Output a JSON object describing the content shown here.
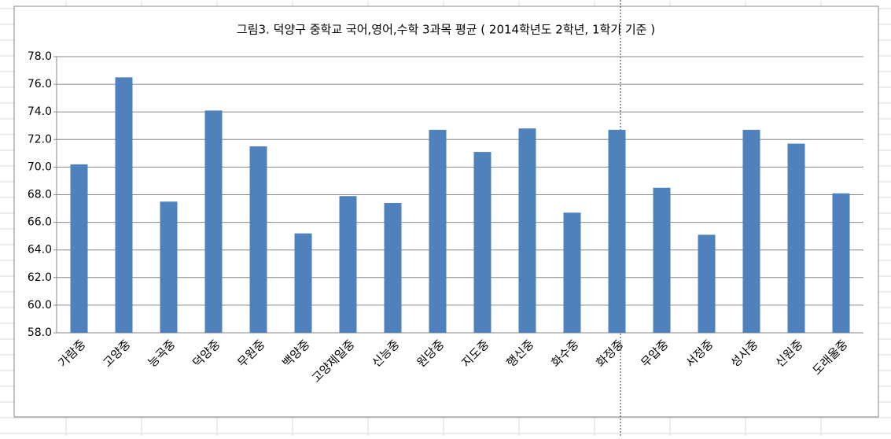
{
  "chart_data": {
    "type": "bar",
    "title": "그림3. 덕양구 중학교 국어,영어,수학 3과목 평균 ( 2014학년도 2학년, 1학기 기준 )",
    "categories": [
      "가람중",
      "고양중",
      "능곡중",
      "덕양중",
      "무원중",
      "백양중",
      "고양제일중",
      "신능중",
      "원당중",
      "지도중",
      "행신중",
      "화수중",
      "화정중",
      "무압중",
      "서정중",
      "성사중",
      "신원중",
      "도래울중"
    ],
    "values": [
      70.2,
      76.5,
      67.5,
      74.1,
      71.5,
      65.2,
      67.9,
      67.4,
      72.7,
      71.1,
      72.8,
      66.7,
      72.7,
      68.5,
      65.1,
      72.7,
      71.7,
      68.1
    ],
    "color": "#4f81bd",
    "ylim": [
      58,
      78
    ],
    "yticks": [
      {
        "value": 58,
        "label": "58.0"
      },
      {
        "value": 60,
        "label": "60.0"
      },
      {
        "value": 62,
        "label": "62.0"
      },
      {
        "value": 64,
        "label": "64.0"
      },
      {
        "value": 66,
        "label": "66.0"
      },
      {
        "value": 68,
        "label": "68.0"
      },
      {
        "value": 70,
        "label": "70.0"
      },
      {
        "value": 72,
        "label": "72.0"
      },
      {
        "value": 74,
        "label": "74.0"
      },
      {
        "value": 76,
        "label": "76.0"
      },
      {
        "value": 78,
        "label": "78.0"
      }
    ],
    "grid": true
  }
}
